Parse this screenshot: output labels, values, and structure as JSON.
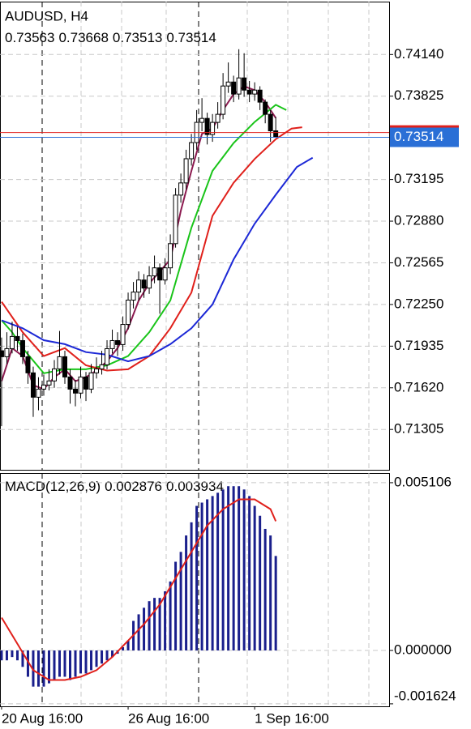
{
  "chart_data": [
    {
      "type": "candlestick",
      "title": "AUDUSD, H4",
      "color": "#000000",
      "ohlc": [
        [
          0.719,
          0.72,
          0.7133,
          0.71855
        ],
        [
          0.71855,
          0.7204,
          0.718,
          0.71916
        ],
        [
          0.71916,
          0.7212,
          0.7188,
          0.72008
        ],
        [
          0.72008,
          0.7208,
          0.719,
          0.71977
        ],
        [
          0.71977,
          0.7203,
          0.718,
          0.71855
        ],
        [
          0.71855,
          0.719,
          0.7165,
          0.71733
        ],
        [
          0.71733,
          0.7178,
          0.714,
          0.71549
        ],
        [
          0.71549,
          0.717,
          0.7145,
          0.7161
        ],
        [
          0.7161,
          0.7172,
          0.7156,
          0.71641
        ],
        [
          0.71641,
          0.7176,
          0.716,
          0.71672
        ],
        [
          0.71672,
          0.7183,
          0.7162,
          0.71763
        ],
        [
          0.71763,
          0.7205,
          0.7172,
          0.71855
        ],
        [
          0.71855,
          0.719,
          0.7165,
          0.71702
        ],
        [
          0.71702,
          0.7176,
          0.715,
          0.7161
        ],
        [
          0.7161,
          0.7168,
          0.7148,
          0.7158
        ],
        [
          0.7158,
          0.7178,
          0.7154,
          0.71702
        ],
        [
          0.71702,
          0.7174,
          0.7152,
          0.7161
        ],
        [
          0.7161,
          0.718,
          0.7158,
          0.71733
        ],
        [
          0.71733,
          0.7185,
          0.7169,
          0.71763
        ],
        [
          0.71763,
          0.719,
          0.7172,
          0.71794
        ],
        [
          0.71794,
          0.7198,
          0.7176,
          0.71916
        ],
        [
          0.71916,
          0.7206,
          0.7188,
          0.71977
        ],
        [
          0.71977,
          0.7204,
          0.7186,
          0.71947
        ],
        [
          0.71947,
          0.7216,
          0.719,
          0.72099
        ],
        [
          0.72099,
          0.7234,
          0.7206,
          0.72283
        ],
        [
          0.72283,
          0.7242,
          0.7222,
          0.72344
        ],
        [
          0.72344,
          0.725,
          0.7228,
          0.72435
        ],
        [
          0.72435,
          0.7248,
          0.723,
          0.72374
        ],
        [
          0.72374,
          0.7254,
          0.7233,
          0.72466
        ],
        [
          0.72466,
          0.7262,
          0.7241,
          0.72527
        ],
        [
          0.72527,
          0.7256,
          0.7218,
          0.72435
        ],
        [
          0.72435,
          0.726,
          0.724,
          0.72527
        ],
        [
          0.72527,
          0.7278,
          0.7248,
          0.7271
        ],
        [
          0.7271,
          0.7313,
          0.7268,
          0.73077
        ],
        [
          0.73077,
          0.7324,
          0.7302,
          0.73169
        ],
        [
          0.73169,
          0.7342,
          0.7312,
          0.73352
        ],
        [
          0.73352,
          0.7354,
          0.733,
          0.73474
        ],
        [
          0.73474,
          0.7372,
          0.7342,
          0.73627
        ],
        [
          0.73627,
          0.7381,
          0.7356,
          0.73657
        ],
        [
          0.73657,
          0.737,
          0.7346,
          0.73535
        ],
        [
          0.73535,
          0.7369,
          0.7348,
          0.73627
        ],
        [
          0.73627,
          0.7378,
          0.7358,
          0.73688
        ],
        [
          0.73688,
          0.74,
          0.7365,
          0.73902
        ],
        [
          0.73902,
          0.7408,
          0.7385,
          0.73932
        ],
        [
          0.73932,
          0.7398,
          0.7378,
          0.73841
        ],
        [
          0.73841,
          0.7418,
          0.738,
          0.73963
        ],
        [
          0.73963,
          0.7415,
          0.7382,
          0.73871
        ],
        [
          0.73871,
          0.7394,
          0.7378,
          0.73841
        ],
        [
          0.73841,
          0.7393,
          0.7379,
          0.73871
        ],
        [
          0.73871,
          0.739,
          0.7372,
          0.7378
        ],
        [
          0.7378,
          0.738,
          0.7362,
          0.73688
        ],
        [
          0.73688,
          0.7372,
          0.7348,
          0.73563
        ],
        [
          0.73563,
          0.73668,
          0.73513,
          0.73514
        ]
      ],
      "ma": [
        {
          "color": "#8b1a4f",
          "x": [
            0,
            2,
            4,
            6,
            8,
            10,
            12,
            14,
            16,
            18,
            20,
            22,
            24,
            26,
            28,
            30,
            32,
            34,
            36,
            38,
            40,
            42,
            44,
            46,
            48,
            50,
            52
          ],
          "values": [
            0.7167,
            0.7192,
            0.7186,
            0.7164,
            0.7161,
            0.717,
            0.7176,
            0.7167,
            0.717,
            0.7175,
            0.7182,
            0.7192,
            0.7207,
            0.7228,
            0.7241,
            0.725,
            0.7259,
            0.7296,
            0.7326,
            0.7354,
            0.7358,
            0.7372,
            0.7384,
            0.739,
            0.7387,
            0.7378,
            0.7366
          ]
        },
        {
          "color": "#19c419",
          "x": [
            0,
            2,
            4,
            8,
            12,
            16,
            20,
            24,
            28,
            32,
            36,
            40,
            44,
            48,
            52,
            54
          ],
          "values": [
            0.7213,
            0.7204,
            0.7192,
            0.7173,
            0.7176,
            0.7176,
            0.7179,
            0.7186,
            0.7204,
            0.7228,
            0.7283,
            0.7326,
            0.7347,
            0.7363,
            0.7376,
            0.7372
          ]
        },
        {
          "color": "#e0201b",
          "x": [
            0,
            4,
            8,
            12,
            16,
            20,
            24,
            28,
            32,
            36,
            40,
            44,
            48,
            52,
            55,
            57
          ],
          "values": [
            0.7227,
            0.7204,
            0.7186,
            0.7192,
            0.7179,
            0.7175,
            0.7176,
            0.7186,
            0.7207,
            0.7234,
            0.7292,
            0.7317,
            0.7335,
            0.735,
            0.7358,
            0.7359
          ]
        },
        {
          "color": "#1c28d6",
          "x": [
            0,
            4,
            8,
            12,
            16,
            20,
            24,
            28,
            32,
            36,
            40,
            44,
            48,
            52,
            56,
            59
          ],
          "values": [
            0.7213,
            0.7207,
            0.7198,
            0.7195,
            0.7189,
            0.7187,
            0.7182,
            0.7186,
            0.7195,
            0.7207,
            0.7225,
            0.7259,
            0.7286,
            0.7308,
            0.7329,
            0.7336
          ]
        }
      ],
      "bid_color": "#2a6fd6",
      "ask_line": {
        "value": 0.7355,
        "color": "#e0201b"
      },
      "xlim": [
        -0.3,
        73.5
      ],
      "ylim": [
        0.71,
        0.7454
      ],
      "yticks": [
        {
          "value": 0.7414,
          "label": "0.74140"
        },
        0.73825,
        0.73195,
        {
          "value": 0.7288,
          "label": "0.72880"
        },
        0.72565,
        {
          "value": 0.7225,
          "label": "0.72250"
        },
        0.71935,
        {
          "value": 0.7162,
          "label": "0.71620"
        },
        0.71305
      ],
      "grid": true
    },
    {
      "type": "macd",
      "title": "MACD(12,26,9)",
      "histogram": {
        "color": "#1a1f8c",
        "values": [
          -0.0003,
          -0.0003,
          -0.0002,
          -0.0003,
          -0.0005,
          -0.0008,
          -0.0011,
          -0.0011,
          -0.0011,
          -0.001,
          -0.0009,
          -0.0008,
          -0.0008,
          -0.0009,
          -0.0008,
          -0.0007,
          -0.0007,
          -0.0006,
          -0.0005,
          -0.0004,
          -0.0003,
          -0.0002,
          -0.0001,
          0.0001,
          0.0003,
          0.0009,
          0.0011,
          0.0013,
          0.0015,
          0.0016,
          0.0016,
          0.0018,
          0.0021,
          0.0027,
          0.003,
          0.0035,
          0.0039,
          0.0044,
          0.0045,
          0.0046,
          0.0047,
          0.0048,
          0.0049,
          0.005,
          0.005,
          0.005,
          0.0049,
          0.0047,
          0.0044,
          0.0041,
          0.0037,
          0.0035,
          0.002876
        ]
      },
      "signal": {
        "color": "#e0201b",
        "x": [
          0,
          3,
          6,
          9,
          12,
          15,
          18,
          21,
          24,
          27,
          30,
          33,
          36,
          39,
          42,
          45,
          48,
          51,
          52
        ],
        "values": [
          0.001,
          0.0002,
          -0.0006,
          -0.0009,
          -0.0009,
          -0.0008,
          -0.0006,
          -0.0002,
          0.0003,
          0.0008,
          0.0014,
          0.0022,
          0.003,
          0.0038,
          0.0043,
          0.0046,
          0.0046,
          0.0043,
          0.003934
        ]
      },
      "xlim": [
        -0.3,
        73.5
      ],
      "ylim": [
        -0.0017,
        0.0054
      ],
      "yticks": [
        0.005106,
        {
          "value": 0,
          "label": "0.000000"
        },
        -0.001624
      ],
      "xticks": [
        {
          "value": 0,
          "label": "20 Aug 16:00"
        },
        {
          "value": 24,
          "label": "26 Aug 16:00"
        },
        {
          "value": 48,
          "label": "1 Sep 16:00"
        }
      ],
      "grid": true
    }
  ]
}
